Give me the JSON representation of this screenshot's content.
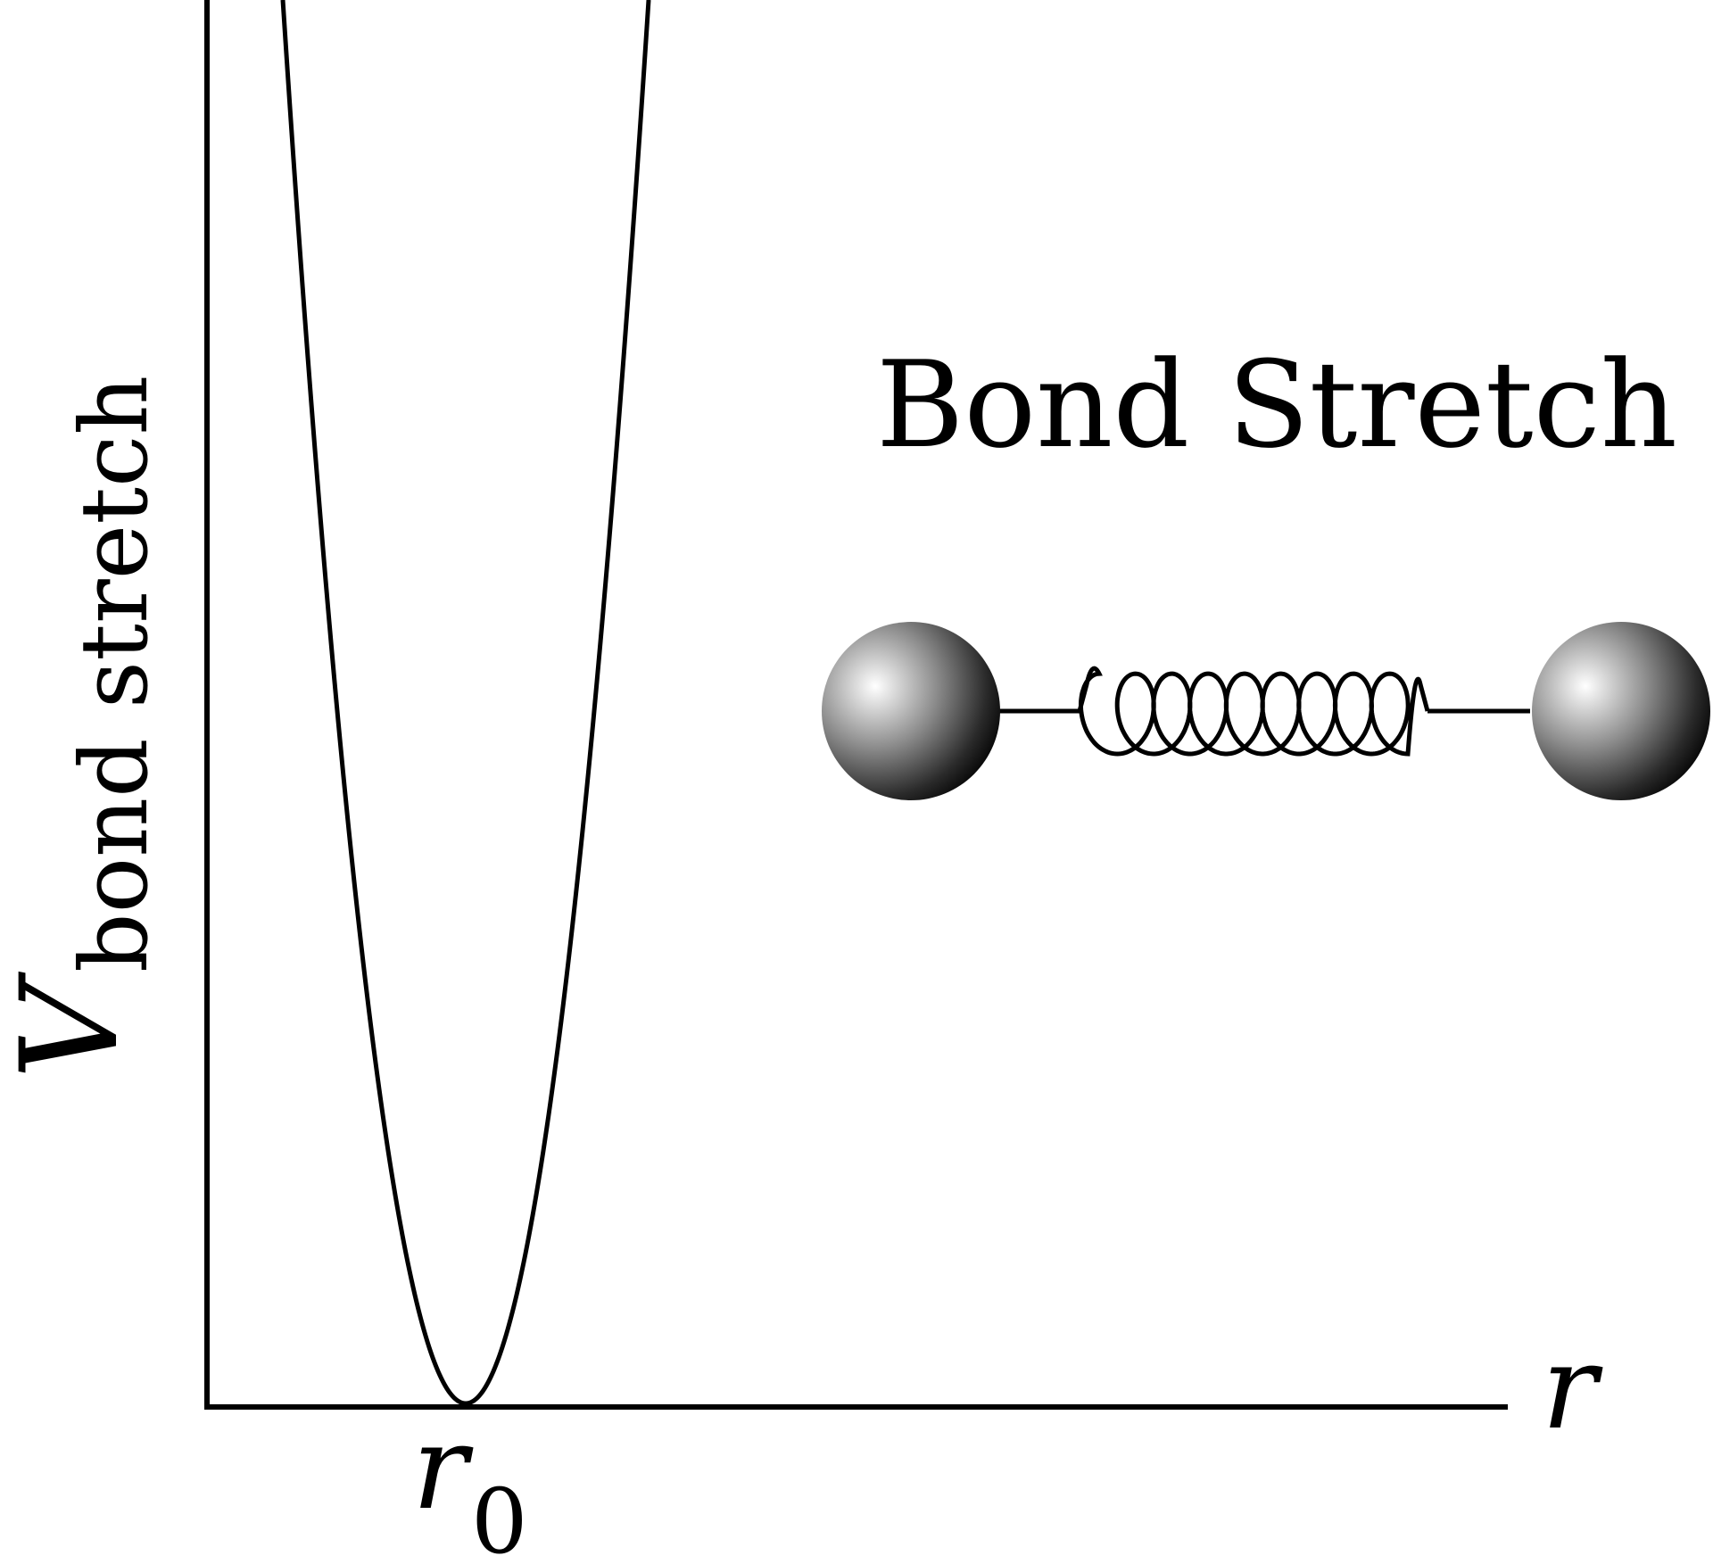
{
  "title": "Bond Stretch",
  "axes": {
    "y_label_symbol": "V",
    "y_label_subscript": "bond stretch",
    "x_label": "r",
    "x_tick_symbol": "r",
    "x_tick_subscript": "0"
  },
  "colors": {
    "line": "#000000",
    "background": "#ffffff",
    "atom_highlight": "#ffffff",
    "atom_mid": "#8a8a8a",
    "atom_shadow": "#000000"
  },
  "illustration": {
    "atoms": [
      "atom-left",
      "atom-right"
    ],
    "spring_coils": 8
  }
}
